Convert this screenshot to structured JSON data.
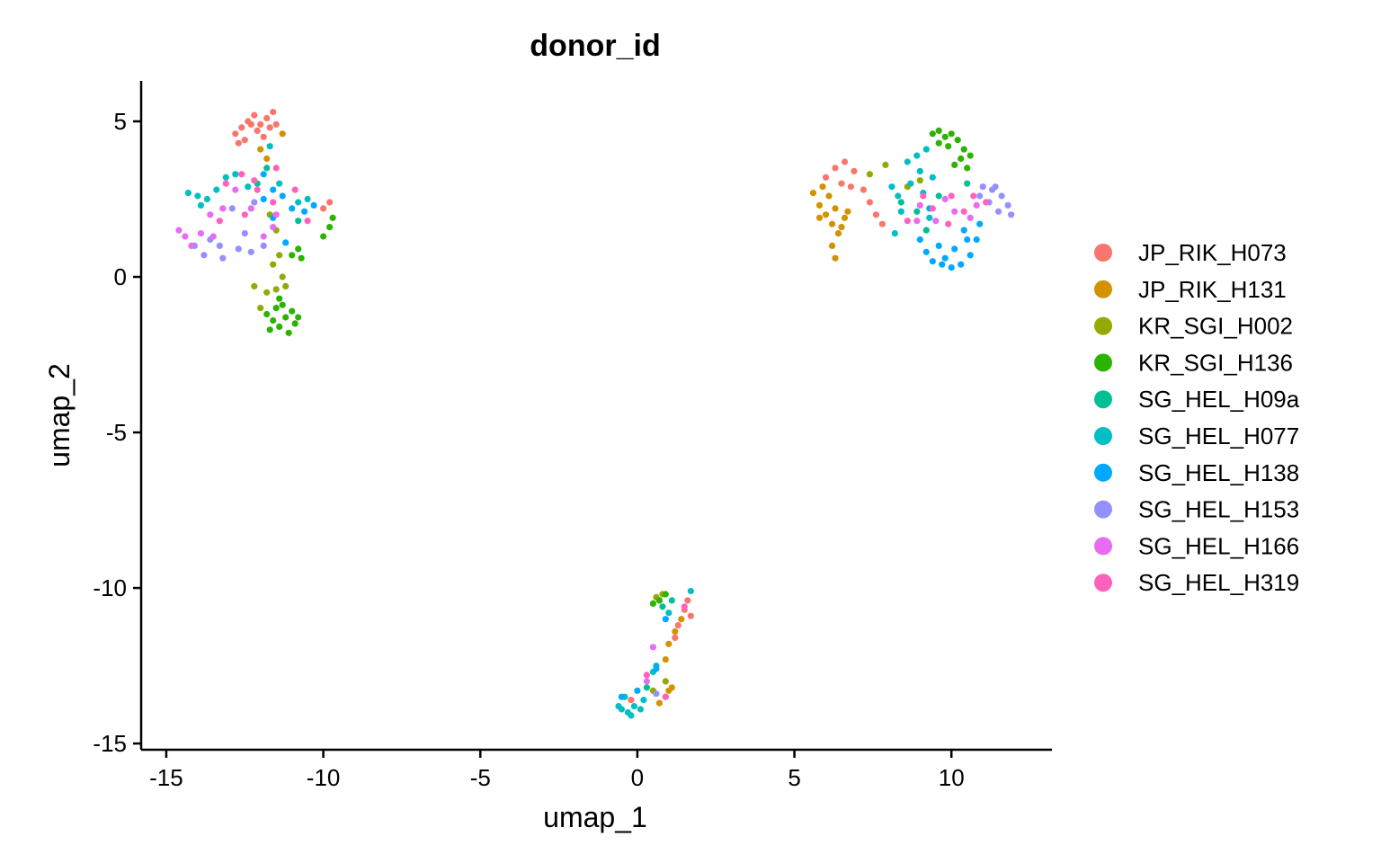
{
  "chart_data": {
    "type": "scatter",
    "title": "donor_id",
    "xlabel": "umap_1",
    "ylabel": "umap_2",
    "xlim": [
      -15.8,
      13.2
    ],
    "ylim": [
      -15.2,
      6.3
    ],
    "xticks": [
      -15,
      -10,
      -5,
      0,
      5,
      10
    ],
    "yticks": [
      -15,
      -10,
      -5,
      0,
      5
    ],
    "grid": false,
    "legend_position": "right",
    "series": [
      {
        "name": "JP_RIK_H073",
        "color": "#F8766D",
        "points": [
          [
            -12.8,
            4.6
          ],
          [
            -12.6,
            4.8
          ],
          [
            -12.4,
            5.0
          ],
          [
            -12.2,
            5.2
          ],
          [
            -12.0,
            4.9
          ],
          [
            -11.8,
            5.1
          ],
          [
            -11.6,
            5.3
          ],
          [
            -11.5,
            4.9
          ],
          [
            -12.5,
            4.4
          ],
          [
            -12.1,
            4.7
          ],
          [
            -11.9,
            4.5
          ],
          [
            -12.7,
            4.3
          ],
          [
            -11.7,
            4.8
          ],
          [
            -12.3,
            4.9
          ],
          [
            -10.0,
            2.2
          ],
          [
            -9.8,
            2.4
          ],
          [
            6.0,
            3.2
          ],
          [
            6.3,
            3.5
          ],
          [
            6.6,
            3.7
          ],
          [
            6.9,
            3.4
          ],
          [
            7.2,
            2.8
          ],
          [
            7.4,
            2.4
          ],
          [
            7.6,
            2.0
          ],
          [
            7.8,
            1.7
          ],
          [
            6.5,
            3.0
          ],
          [
            6.8,
            2.9
          ],
          [
            1.6,
            -10.4
          ],
          [
            1.5,
            -10.7
          ],
          [
            1.7,
            -10.9
          ],
          [
            1.3,
            -11.2
          ],
          [
            1.2,
            -11.6
          ],
          [
            -0.2,
            -13.6
          ]
        ]
      },
      {
        "name": "JP_RIK_H131",
        "color": "#D39200",
        "points": [
          [
            -11.3,
            4.6
          ],
          [
            -12.0,
            4.1
          ],
          [
            -11.8,
            3.8
          ],
          [
            5.6,
            2.7
          ],
          [
            5.8,
            2.3
          ],
          [
            6.0,
            2.0
          ],
          [
            6.2,
            1.7
          ],
          [
            6.4,
            1.4
          ],
          [
            6.1,
            2.6
          ],
          [
            5.9,
            2.9
          ],
          [
            6.3,
            2.2
          ],
          [
            6.6,
            1.9
          ],
          [
            6.2,
            1.0
          ],
          [
            6.3,
            0.6
          ],
          [
            6.7,
            2.1
          ],
          [
            5.8,
            1.9
          ],
          [
            6.5,
            1.6
          ],
          [
            1.4,
            -11.0
          ],
          [
            1.2,
            -11.4
          ],
          [
            1.0,
            -11.8
          ],
          [
            0.9,
            -12.3
          ],
          [
            1.1,
            -13.2
          ],
          [
            0.9,
            -13.5
          ],
          [
            0.7,
            -13.7
          ],
          [
            1.0,
            -13.3
          ]
        ]
      },
      {
        "name": "KR_SGI_H002",
        "color": "#93AA00",
        "points": [
          [
            -12.2,
            -0.3
          ],
          [
            -11.8,
            -0.5
          ],
          [
            -11.5,
            -0.4
          ],
          [
            -11.2,
            -0.3
          ],
          [
            -11.6,
            0.4
          ],
          [
            -11.4,
            0.7
          ],
          [
            -12.0,
            -1.0
          ],
          [
            -11.3,
            0.0
          ],
          [
            -11.7,
            2.0
          ],
          [
            -11.5,
            1.5
          ],
          [
            7.4,
            3.3
          ],
          [
            7.9,
            3.6
          ],
          [
            8.6,
            2.9
          ],
          [
            9.0,
            3.1
          ],
          [
            0.6,
            -10.3
          ],
          [
            0.8,
            -10.2
          ],
          [
            0.5,
            -13.3
          ],
          [
            0.9,
            -13.0
          ]
        ]
      },
      {
        "name": "KR_SGI_H136",
        "color": "#2BB300",
        "points": [
          [
            -11.8,
            -1.2
          ],
          [
            -11.6,
            -1.4
          ],
          [
            -11.4,
            -1.6
          ],
          [
            -11.2,
            -1.3
          ],
          [
            -11.0,
            -1.1
          ],
          [
            -10.8,
            -1.3
          ],
          [
            -11.5,
            -1.0
          ],
          [
            -11.3,
            -0.9
          ],
          [
            -11.7,
            -1.7
          ],
          [
            -11.1,
            -1.8
          ],
          [
            -10.9,
            -1.5
          ],
          [
            -11.4,
            -0.7
          ],
          [
            -11.0,
            0.7
          ],
          [
            -10.8,
            0.9
          ],
          [
            -10.7,
            0.6
          ],
          [
            -10.0,
            1.3
          ],
          [
            -9.8,
            1.6
          ],
          [
            -9.7,
            1.9
          ],
          [
            9.4,
            4.6
          ],
          [
            9.6,
            4.7
          ],
          [
            9.8,
            4.5
          ],
          [
            10.0,
            4.6
          ],
          [
            10.2,
            4.4
          ],
          [
            10.4,
            4.1
          ],
          [
            10.6,
            3.9
          ],
          [
            9.6,
            4.3
          ],
          [
            10.1,
            3.6
          ],
          [
            10.3,
            3.8
          ],
          [
            10.5,
            3.5
          ],
          [
            9.9,
            4.2
          ],
          [
            0.5,
            -10.5
          ],
          [
            0.7,
            -10.4
          ],
          [
            0.9,
            -10.2
          ]
        ]
      },
      {
        "name": "SG_HEL_H09a",
        "color": "#00C094",
        "points": [
          [
            -11.8,
            3.5
          ],
          [
            -12.1,
            3.0
          ],
          [
            -10.8,
            1.8
          ],
          [
            9.2,
            1.5
          ],
          [
            9.6,
            2.6
          ],
          [
            8.9,
            2.1
          ],
          [
            10.5,
            3.0
          ],
          [
            8.4,
            2.4
          ],
          [
            1.1,
            -10.4
          ],
          [
            0.8,
            -10.6
          ],
          [
            0.3,
            -13.2
          ]
        ]
      },
      {
        "name": "SG_HEL_H077",
        "color": "#00BFC4",
        "points": [
          [
            -14.3,
            2.7
          ],
          [
            -14.0,
            2.6
          ],
          [
            -13.7,
            2.5
          ],
          [
            -13.4,
            2.8
          ],
          [
            -13.1,
            3.2
          ],
          [
            -12.8,
            3.3
          ],
          [
            -12.4,
            2.9
          ],
          [
            -11.7,
            4.2
          ],
          [
            -11.4,
            3.0
          ],
          [
            -10.8,
            2.4
          ],
          [
            -10.5,
            2.5
          ],
          [
            -13.9,
            2.3
          ],
          [
            8.6,
            3.7
          ],
          [
            8.9,
            3.9
          ],
          [
            9.2,
            4.1
          ],
          [
            9.0,
            3.4
          ],
          [
            9.4,
            3.2
          ],
          [
            8.7,
            3.0
          ],
          [
            8.1,
            2.9
          ],
          [
            8.3,
            2.6
          ],
          [
            9.1,
            2.7
          ],
          [
            9.3,
            1.9
          ],
          [
            8.2,
            1.4
          ],
          [
            8.4,
            2.1
          ],
          [
            -0.5,
            -13.9
          ],
          [
            -0.3,
            -14.0
          ],
          [
            -0.1,
            -13.8
          ],
          [
            0.1,
            -13.9
          ],
          [
            -0.2,
            -14.1
          ],
          [
            -0.6,
            -13.8
          ],
          [
            0.2,
            -13.6
          ],
          [
            -0.4,
            -13.5
          ],
          [
            0.5,
            -12.7
          ],
          [
            0.6,
            -12.5
          ],
          [
            1.0,
            -10.8
          ],
          [
            1.7,
            -10.1
          ]
        ]
      },
      {
        "name": "SG_HEL_H138",
        "color": "#00A9FF",
        "points": [
          [
            -11.9,
            2.5
          ],
          [
            -11.6,
            2.8
          ],
          [
            -11.3,
            2.6
          ],
          [
            -11.6,
            1.9
          ],
          [
            -11.2,
            1.1
          ],
          [
            -11.0,
            2.2
          ],
          [
            -10.6,
            2.1
          ],
          [
            -10.3,
            2.3
          ],
          [
            -11.9,
            3.3
          ],
          [
            9.4,
            0.5
          ],
          [
            9.7,
            0.4
          ],
          [
            10.0,
            0.3
          ],
          [
            10.3,
            0.4
          ],
          [
            10.6,
            0.7
          ],
          [
            9.2,
            0.8
          ],
          [
            10.1,
            0.9
          ],
          [
            10.5,
            1.2
          ],
          [
            9.8,
            0.6
          ],
          [
            10.4,
            1.5
          ],
          [
            10.9,
            1.7
          ],
          [
            9.0,
            1.2
          ],
          [
            9.6,
            1.0
          ],
          [
            10.8,
            1.2
          ],
          [
            9.3,
            2.2
          ],
          [
            -0.5,
            -13.5
          ],
          [
            0.0,
            -13.3
          ],
          [
            0.6,
            -12.6
          ],
          [
            0.9,
            -11.0
          ]
        ]
      },
      {
        "name": "SG_HEL_H153",
        "color": "#9590FF",
        "points": [
          [
            -14.1,
            1.0
          ],
          [
            -13.8,
            0.7
          ],
          [
            -13.6,
            1.2
          ],
          [
            -13.3,
            1.0
          ],
          [
            -13.2,
            0.6
          ],
          [
            -12.7,
            0.9
          ],
          [
            -12.3,
            0.8
          ],
          [
            -11.9,
            1.0
          ],
          [
            -12.5,
            1.4
          ],
          [
            -12.9,
            2.2
          ],
          [
            -12.2,
            2.4
          ],
          [
            11.0,
            2.9
          ],
          [
            11.3,
            2.8
          ],
          [
            11.6,
            2.6
          ],
          [
            11.8,
            2.3
          ],
          [
            11.5,
            2.1
          ],
          [
            11.2,
            2.4
          ],
          [
            11.9,
            2.0
          ],
          [
            10.9,
            2.6
          ],
          [
            11.4,
            2.9
          ],
          [
            0.6,
            -13.4
          ]
        ]
      },
      {
        "name": "SG_HEL_H166",
        "color": "#E76BF3",
        "points": [
          [
            -14.6,
            1.5
          ],
          [
            -14.4,
            1.3
          ],
          [
            -14.2,
            1.0
          ],
          [
            -13.9,
            1.4
          ],
          [
            -13.5,
            1.3
          ],
          [
            -13.6,
            2.0
          ],
          [
            -13.2,
            2.2
          ],
          [
            -12.8,
            2.8
          ],
          [
            -12.3,
            2.2
          ],
          [
            -11.9,
            1.3
          ],
          [
            -11.6,
            1.6
          ],
          [
            -11.5,
            2.0
          ],
          [
            9.0,
            2.3
          ],
          [
            9.5,
            1.8
          ],
          [
            10.1,
            2.1
          ],
          [
            10.6,
            1.9
          ],
          [
            9.8,
            2.5
          ],
          [
            8.9,
            1.8
          ],
          [
            10.8,
            2.3
          ],
          [
            0.5,
            -11.9
          ],
          [
            0.3,
            -13.0
          ]
        ]
      },
      {
        "name": "SG_HEL_H319",
        "color": "#FF62BC",
        "points": [
          [
            -13.1,
            3.0
          ],
          [
            -12.6,
            3.3
          ],
          [
            -12.2,
            3.1
          ],
          [
            -11.5,
            3.5
          ],
          [
            -10.9,
            2.8
          ],
          [
            -10.5,
            1.8
          ],
          [
            -12.5,
            2.0
          ],
          [
            -12.1,
            2.8
          ],
          [
            -11.6,
            2.4
          ],
          [
            -13.3,
            1.8
          ],
          [
            9.1,
            2.6
          ],
          [
            9.4,
            2.2
          ],
          [
            10.0,
            2.6
          ],
          [
            10.4,
            2.1
          ],
          [
            10.7,
            2.6
          ],
          [
            11.1,
            2.4
          ],
          [
            9.9,
            1.7
          ],
          [
            8.6,
            1.8
          ],
          [
            1.5,
            -10.6
          ],
          [
            0.3,
            -12.8
          ],
          [
            0.9,
            -13.5
          ]
        ]
      }
    ]
  }
}
